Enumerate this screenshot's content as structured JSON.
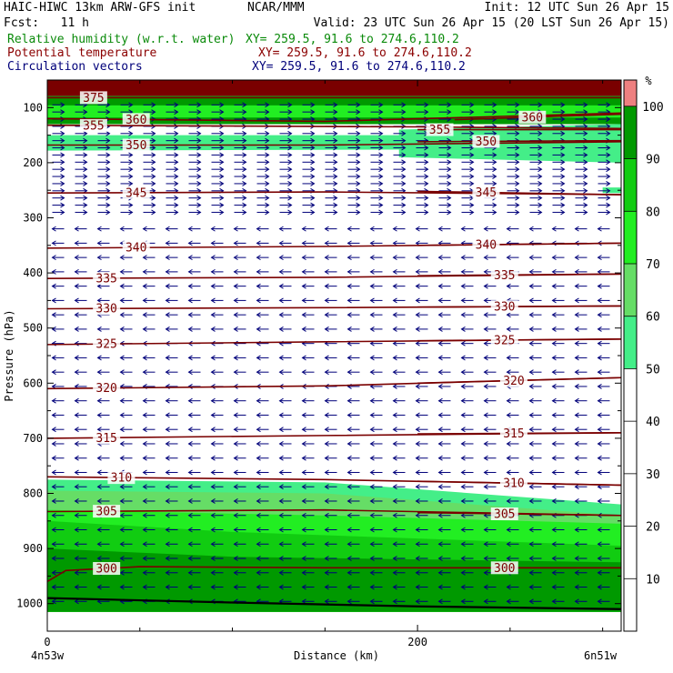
{
  "header": {
    "line1_left": "HAIC-HIWC 13km ARW-GFS init",
    "line1_mid": "NCAR/MMM",
    "line1_right": "Init: 12 UTC Sun 26 Apr 15",
    "line2_left": "Fcst:   11 h",
    "line2_right": "Valid: 23 UTC Sun 26 Apr 15 (20 LST Sun 26 Apr 15)",
    "fields": [
      {
        "name": "Relative humidity (w.r.t. water)",
        "xy": "XY= 259.5, 91.6 to 274.6,110.2",
        "color": "#0a8a0a"
      },
      {
        "name": "Potential temperature",
        "xy": "XY= 259.5, 91.6 to 274.6,110.2",
        "color": "#8b0000"
      },
      {
        "name": "Circulation vectors",
        "xy": "XY= 259.5, 91.6 to 274.6,110.2",
        "color": "#00007a"
      }
    ]
  },
  "chart_data": {
    "type": "heatmap",
    "xlabel": "Distance (km)",
    "ylabel": "Pressure (hPa)",
    "xlim": [
      0,
      310
    ],
    "ylim": [
      1050,
      50
    ],
    "x_ticks": [
      0,
      200
    ],
    "y_ticks": [
      100,
      200,
      300,
      400,
      500,
      600,
      700,
      800,
      900,
      1000
    ],
    "x_end_labels": {
      "left": "4n53w",
      "right": "6n51w"
    },
    "colorbar": {
      "unit": "%",
      "ticks": [
        10,
        20,
        30,
        40,
        50,
        60,
        70,
        80,
        90,
        100
      ],
      "bands": [
        {
          "from": 50,
          "to": 60,
          "color": "#44ee88"
        },
        {
          "from": 60,
          "to": 70,
          "color": "#66dd66"
        },
        {
          "from": 70,
          "to": 80,
          "color": "#22ee22"
        },
        {
          "from": 80,
          "to": 90,
          "color": "#11cc11"
        },
        {
          "from": 90,
          "to": 100,
          "color": "#009900"
        },
        {
          "from": 100,
          "to": 105,
          "color": "#ee8080"
        }
      ]
    },
    "rh_regions": [
      {
        "level": "100",
        "color": "#7a0000",
        "polygon": [
          [
            0,
            50
          ],
          [
            310,
            50
          ],
          [
            310,
            79
          ],
          [
            0,
            79
          ]
        ]
      },
      {
        "level": "90",
        "color": "#009900",
        "polygon": [
          [
            0,
            79
          ],
          [
            310,
            79
          ],
          [
            310,
            130
          ],
          [
            0,
            130
          ]
        ]
      },
      {
        "level": "70",
        "color": "#22ee22",
        "polygon": [
          [
            0,
            96
          ],
          [
            310,
            96
          ],
          [
            310,
            118
          ],
          [
            0,
            118
          ]
        ]
      },
      {
        "level": "50",
        "color": "#44ee88",
        "polygon": [
          [
            0,
            150
          ],
          [
            310,
            150
          ],
          [
            310,
            175
          ],
          [
            0,
            178
          ]
        ]
      },
      {
        "level": "50",
        "color": "#44ee88",
        "polygon": [
          [
            190,
            140
          ],
          [
            310,
            130
          ],
          [
            310,
            200
          ],
          [
            190,
            190
          ]
        ]
      },
      {
        "level": "50",
        "color": "#44ee88",
        "polygon": [
          [
            300,
            245
          ],
          [
            310,
            245
          ],
          [
            310,
            255
          ],
          [
            300,
            255
          ]
        ]
      },
      {
        "level": "50",
        "color": "#44ee88",
        "polygon": [
          [
            0,
            775
          ],
          [
            150,
            780
          ],
          [
            310,
            820
          ],
          [
            310,
            1015
          ],
          [
            0,
            1015
          ]
        ]
      },
      {
        "level": "60",
        "color": "#66dd66",
        "polygon": [
          [
            0,
            795
          ],
          [
            150,
            800
          ],
          [
            310,
            840
          ],
          [
            310,
            1015
          ],
          [
            0,
            1015
          ]
        ]
      },
      {
        "level": "70",
        "color": "#22ee22",
        "polygon": [
          [
            0,
            830
          ],
          [
            150,
            840
          ],
          [
            310,
            855
          ],
          [
            310,
            1015
          ],
          [
            0,
            1015
          ]
        ]
      },
      {
        "level": "80",
        "color": "#11cc11",
        "polygon": [
          [
            0,
            850
          ],
          [
            100,
            870
          ],
          [
            310,
            895
          ],
          [
            310,
            1015
          ],
          [
            0,
            1015
          ]
        ]
      },
      {
        "level": "90",
        "color": "#009900",
        "polygon": [
          [
            0,
            900
          ],
          [
            100,
            915
          ],
          [
            310,
            925
          ],
          [
            310,
            1015
          ],
          [
            0,
            1015
          ]
        ]
      }
    ],
    "theta_contours": [
      {
        "value": 375,
        "points": [
          [
            0,
            82
          ],
          [
            310,
            82
          ]
        ],
        "label_x": 25
      },
      {
        "value": 360,
        "points": [
          [
            0,
            120
          ],
          [
            150,
            125
          ],
          [
            310,
            110
          ]
        ],
        "label_x": 48
      },
      {
        "value": 355,
        "points": [
          [
            0,
            132
          ],
          [
            200,
            135
          ],
          [
            310,
            138
          ]
        ],
        "label_x": 25
      },
      {
        "value": 355,
        "points": [
          [
            200,
            140
          ],
          [
            310,
            140
          ]
        ],
        "label_x": 212
      },
      {
        "value": 360,
        "points": [
          [
            220,
            122
          ],
          [
            310,
            112
          ]
        ],
        "label_x": 262
      },
      {
        "value": 350,
        "points": [
          [
            0,
            168
          ],
          [
            150,
            168
          ],
          [
            310,
            162
          ]
        ],
        "label_x": 48
      },
      {
        "value": 350,
        "points": [
          [
            200,
            162
          ],
          [
            310,
            160
          ]
        ],
        "label_x": 237
      },
      {
        "value": 345,
        "points": [
          [
            0,
            255
          ],
          [
            150,
            253
          ],
          [
            310,
            258
          ]
        ],
        "label_x": 48
      },
      {
        "value": 345,
        "points": [
          [
            200,
            252
          ],
          [
            310,
            258
          ]
        ],
        "label_x": 237
      },
      {
        "value": 340,
        "points": [
          [
            0,
            355
          ],
          [
            150,
            352
          ],
          [
            310,
            346
          ]
        ],
        "label_x": 48
      },
      {
        "value": 340,
        "points": [
          [
            200,
            350
          ],
          [
            310,
            346
          ]
        ],
        "label_x": 237
      },
      {
        "value": 335,
        "points": [
          [
            0,
            410
          ],
          [
            150,
            408
          ],
          [
            310,
            402
          ]
        ],
        "label_x": 32
      },
      {
        "value": 335,
        "points": [
          [
            200,
            405
          ],
          [
            310,
            402
          ]
        ],
        "label_x": 247
      },
      {
        "value": 330,
        "points": [
          [
            0,
            465
          ],
          [
            150,
            463
          ],
          [
            310,
            460
          ]
        ],
        "label_x": 32
      },
      {
        "value": 330,
        "points": [
          [
            200,
            462
          ],
          [
            310,
            460
          ]
        ],
        "label_x": 247
      },
      {
        "value": 325,
        "points": [
          [
            0,
            530
          ],
          [
            150,
            525
          ],
          [
            310,
            520
          ]
        ],
        "label_x": 32
      },
      {
        "value": 325,
        "points": [
          [
            200,
            523
          ],
          [
            310,
            520
          ]
        ],
        "label_x": 247
      },
      {
        "value": 320,
        "points": [
          [
            0,
            610
          ],
          [
            150,
            605
          ],
          [
            310,
            590
          ]
        ],
        "label_x": 32
      },
      {
        "value": 320,
        "points": [
          [
            200,
            600
          ],
          [
            310,
            590
          ]
        ],
        "label_x": 252
      },
      {
        "value": 315,
        "points": [
          [
            0,
            700
          ],
          [
            150,
            695
          ],
          [
            310,
            690
          ]
        ],
        "label_x": 32
      },
      {
        "value": 315,
        "points": [
          [
            200,
            692
          ],
          [
            310,
            690
          ]
        ],
        "label_x": 252
      },
      {
        "value": 310,
        "points": [
          [
            0,
            770
          ],
          [
            150,
            775
          ],
          [
            310,
            785
          ]
        ],
        "label_x": 40
      },
      {
        "value": 310,
        "points": [
          [
            200,
            778
          ],
          [
            310,
            785
          ]
        ],
        "label_x": 252
      },
      {
        "value": 305,
        "points": [
          [
            0,
            833
          ],
          [
            150,
            830
          ],
          [
            310,
            840
          ]
        ],
        "label_x": 32
      },
      {
        "value": 305,
        "points": [
          [
            200,
            835
          ],
          [
            310,
            840
          ]
        ],
        "label_x": 247
      },
      {
        "value": 300,
        "points": [
          [
            0,
            960
          ],
          [
            10,
            940
          ],
          [
            50,
            933
          ],
          [
            150,
            935
          ],
          [
            310,
            935
          ]
        ],
        "label_x": 32
      },
      {
        "value": 300,
        "points": [
          [
            200,
            935
          ],
          [
            310,
            935
          ]
        ],
        "label_x": 247
      }
    ],
    "terrain": {
      "color": "#000000",
      "points": [
        [
          0,
          990
        ],
        [
          100,
          998
        ],
        [
          200,
          1005
        ],
        [
          310,
          1010
        ]
      ]
    },
    "vectors": {
      "color": "#00007a",
      "x_step": 12,
      "upper": {
        "p_top": 95,
        "p_bottom": 300,
        "direction": "east"
      },
      "lower": {
        "p_top": 320,
        "p_bottom": 1000,
        "direction": "west"
      }
    }
  }
}
